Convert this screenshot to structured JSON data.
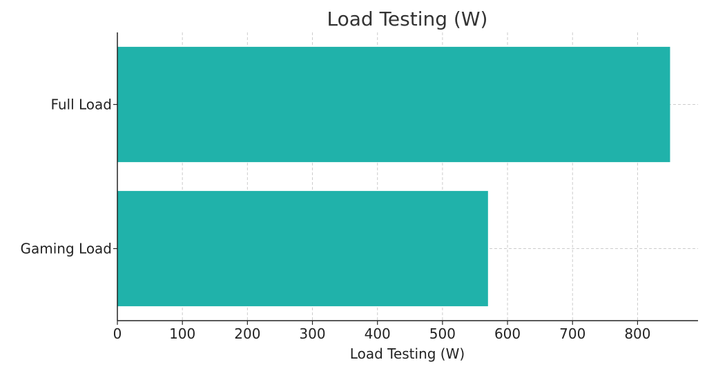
{
  "chart_data": {
    "type": "bar",
    "orientation": "horizontal",
    "title": "Load Testing (W)",
    "xlabel": "Load Testing (W)",
    "ylabel": "",
    "categories": [
      "Full Load",
      "Gaming Load"
    ],
    "values": [
      850,
      570
    ],
    "xlim": [
      0,
      893
    ],
    "xticks": [
      0,
      100,
      200,
      300,
      400,
      500,
      600,
      700,
      800
    ],
    "grid": true,
    "bar_color": "#20b2aa"
  }
}
